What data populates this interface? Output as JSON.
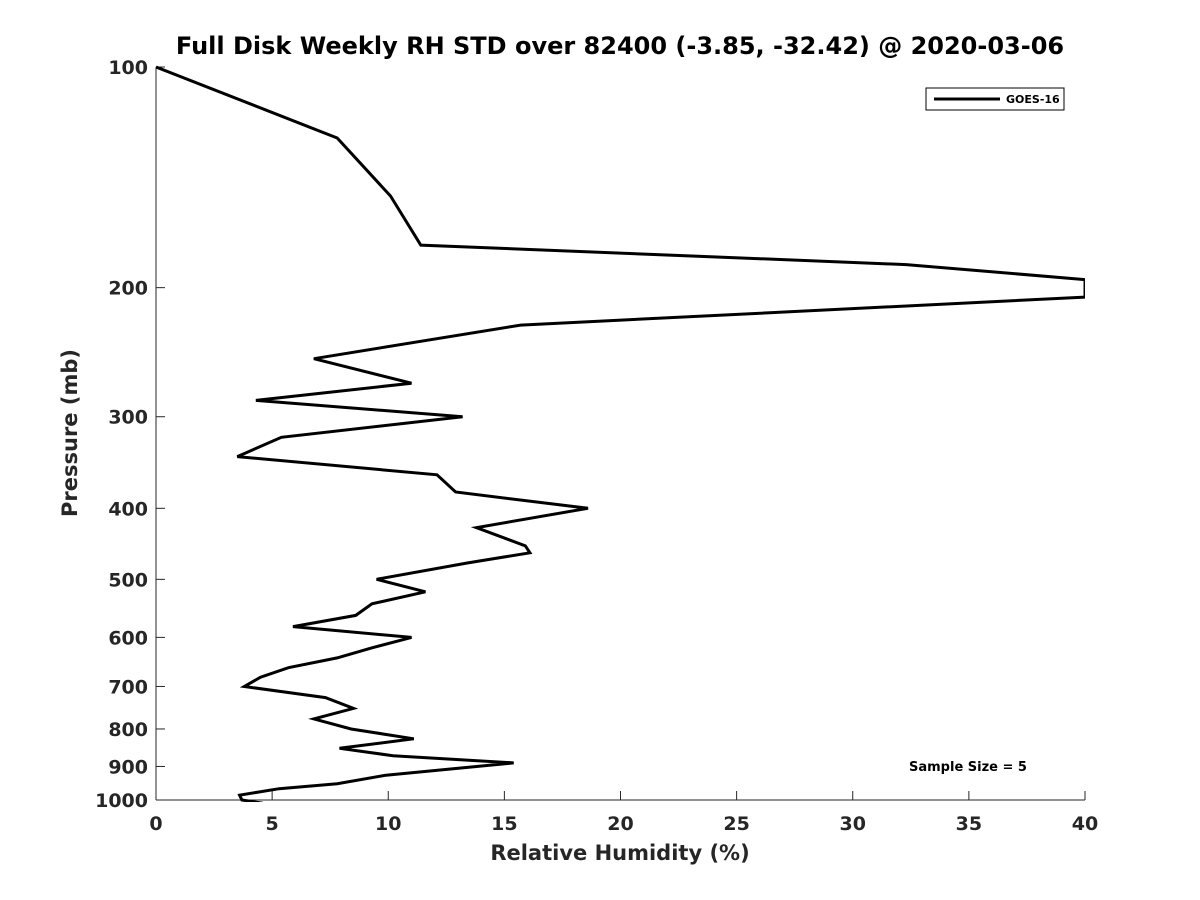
{
  "chart_data": {
    "type": "line",
    "title": "Full Disk Weekly RH STD over 82400 (-3.85, -32.42) @ 2020-03-06",
    "xlabel": "Relative Humidity (%)",
    "ylabel": "Pressure (mb)",
    "xlim": [
      0,
      40
    ],
    "ylim": [
      100,
      1000
    ],
    "y_scale": "log",
    "y_reversed": true,
    "grid": false,
    "legend_position": "top-right",
    "x_ticks": [
      "0",
      "5",
      "10",
      "15",
      "20",
      "25",
      "30",
      "35",
      "40"
    ],
    "y_ticks": [
      "100",
      "200",
      "300",
      "400",
      "500",
      "600",
      "700",
      "800",
      "900",
      "1000"
    ],
    "annotation": "Sample Size = 5",
    "series": [
      {
        "name": "GOES-16",
        "color": "#000000",
        "points": [
          {
            "x": 0.0,
            "y": 100
          },
          {
            "x": 7.8,
            "y": 125
          },
          {
            "x": 10.1,
            "y": 150
          },
          {
            "x": 11.4,
            "y": 175
          },
          {
            "x": 32.3,
            "y": 186
          },
          {
            "x": 40.0,
            "y": 195
          },
          {
            "x": 40.0,
            "y": 206
          },
          {
            "x": 15.7,
            "y": 225
          },
          {
            "x": 6.8,
            "y": 250
          },
          {
            "x": 11.0,
            "y": 270
          },
          {
            "x": 4.3,
            "y": 285
          },
          {
            "x": 13.2,
            "y": 300
          },
          {
            "x": 5.4,
            "y": 320
          },
          {
            "x": 3.5,
            "y": 340
          },
          {
            "x": 12.1,
            "y": 360
          },
          {
            "x": 12.9,
            "y": 380
          },
          {
            "x": 18.6,
            "y": 400
          },
          {
            "x": 13.8,
            "y": 425
          },
          {
            "x": 15.9,
            "y": 450
          },
          {
            "x": 16.1,
            "y": 460
          },
          {
            "x": 13.4,
            "y": 475
          },
          {
            "x": 9.5,
            "y": 500
          },
          {
            "x": 11.6,
            "y": 520
          },
          {
            "x": 9.3,
            "y": 540
          },
          {
            "x": 8.6,
            "y": 560
          },
          {
            "x": 5.9,
            "y": 580
          },
          {
            "x": 11.0,
            "y": 600
          },
          {
            "x": 9.3,
            "y": 620
          },
          {
            "x": 7.8,
            "y": 640
          },
          {
            "x": 5.7,
            "y": 660
          },
          {
            "x": 4.5,
            "y": 680
          },
          {
            "x": 3.8,
            "y": 700
          },
          {
            "x": 7.3,
            "y": 725
          },
          {
            "x": 8.5,
            "y": 750
          },
          {
            "x": 6.8,
            "y": 775
          },
          {
            "x": 8.4,
            "y": 800
          },
          {
            "x": 11.1,
            "y": 825
          },
          {
            "x": 7.9,
            "y": 850
          },
          {
            "x": 10.2,
            "y": 870
          },
          {
            "x": 15.4,
            "y": 890
          },
          {
            "x": 9.9,
            "y": 925
          },
          {
            "x": 7.8,
            "y": 950
          },
          {
            "x": 5.3,
            "y": 965
          },
          {
            "x": 3.6,
            "y": 985
          },
          {
            "x": 3.7,
            "y": 1000
          },
          {
            "x": 4.6,
            "y": 1010
          }
        ]
      }
    ]
  }
}
